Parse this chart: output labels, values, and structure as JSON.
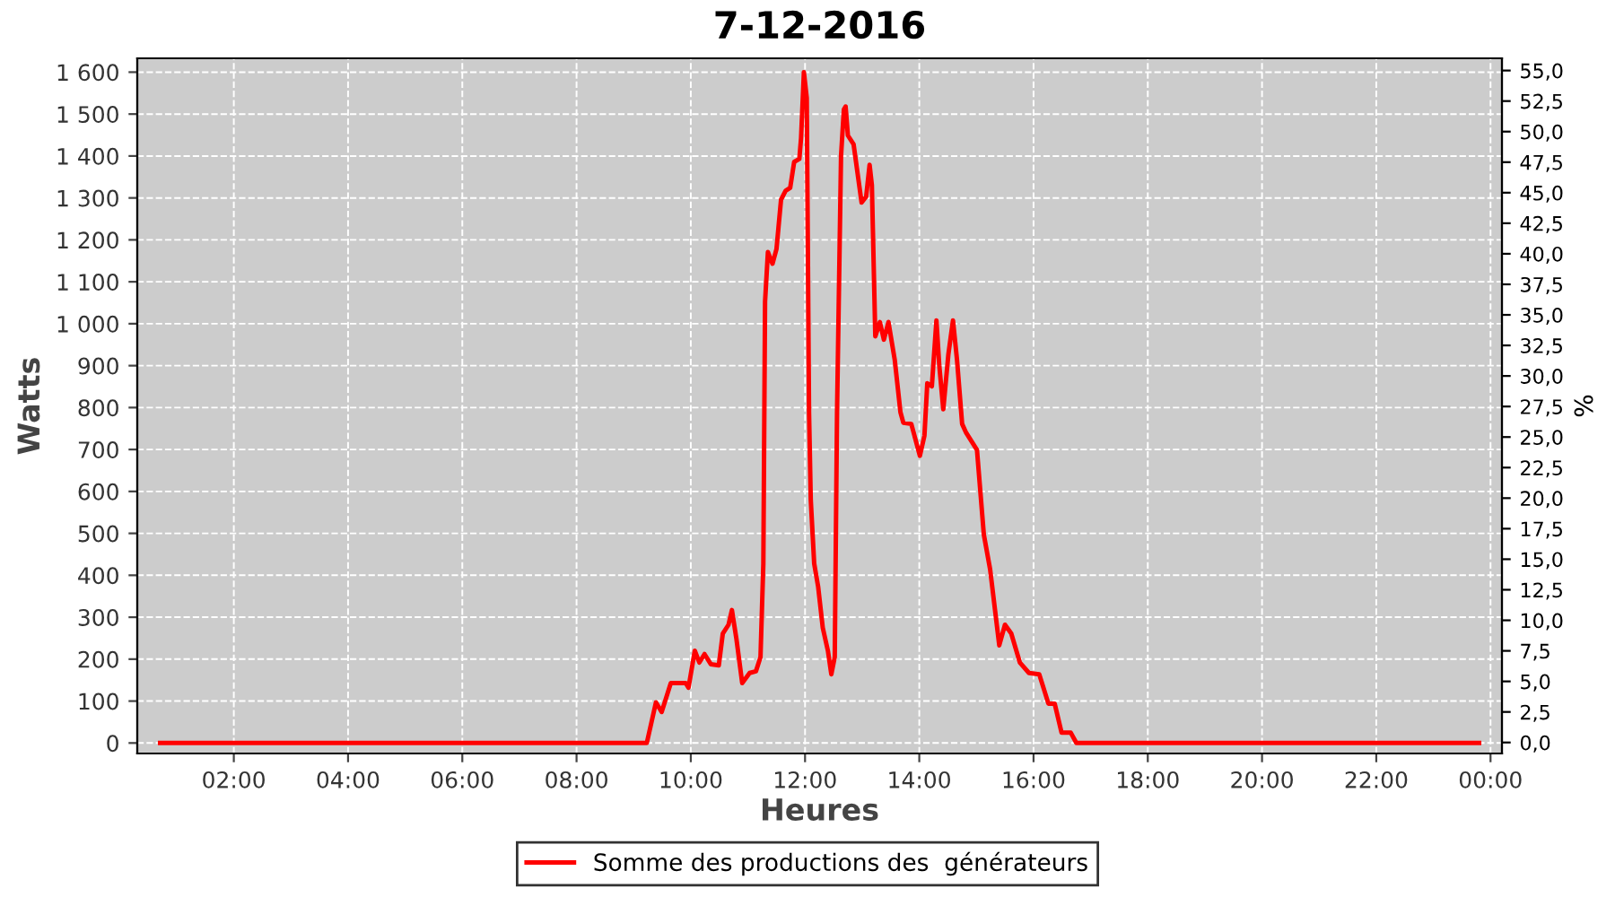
{
  "chart_data": {
    "type": "line",
    "title": "7-12-2016",
    "xlabel": "Heures",
    "ylabel": "Watts",
    "y2label": "%",
    "x": [
      0.71,
      9.23,
      9.39,
      9.49,
      9.65,
      9.91,
      9.96,
      10.07,
      10.15,
      10.24,
      10.35,
      10.49,
      10.56,
      10.66,
      10.72,
      10.8,
      10.9,
      11.03,
      11.14,
      11.22,
      11.27,
      11.3,
      11.35,
      11.43,
      11.5,
      11.58,
      11.66,
      11.74,
      11.81,
      11.9,
      11.93,
      11.98,
      12.03,
      12.07,
      12.1,
      12.16,
      12.23,
      12.31,
      12.4,
      12.46,
      12.52,
      12.56,
      12.63,
      12.68,
      12.71,
      12.75,
      12.85,
      12.99,
      13.07,
      13.13,
      13.17,
      13.23,
      13.31,
      13.38,
      13.46,
      13.57,
      13.67,
      13.72,
      13.86,
      14.01,
      14.09,
      14.14,
      14.22,
      14.3,
      14.35,
      14.42,
      14.51,
      14.59,
      14.66,
      14.75,
      14.82,
      15.01,
      15.13,
      15.24,
      15.4,
      15.5,
      15.61,
      15.76,
      15.92,
      16.1,
      16.26,
      16.37,
      16.49,
      16.65,
      16.75,
      23.8
    ],
    "series": [
      {
        "name": "Somme des productions des  générateurs",
        "color": "#ff0000",
        "values": [
          0,
          0,
          97,
          74,
          143,
          143,
          132,
          220,
          192,
          212,
          188,
          185,
          261,
          282,
          317,
          247,
          143,
          167,
          171,
          205,
          428,
          1053,
          1171,
          1143,
          1178,
          1296,
          1317,
          1324,
          1386,
          1393,
          1442,
          1600,
          1539,
          789,
          580,
          428,
          372,
          275,
          220,
          164,
          205,
          789,
          1400,
          1511,
          1518,
          1449,
          1428,
          1289,
          1303,
          1379,
          1330,
          970,
          1004,
          962,
          1004,
          914,
          789,
          764,
          761,
          685,
          733,
          858,
          851,
          1008,
          900,
          796,
          928,
          1008,
          914,
          761,
          740,
          699,
          497,
          414,
          233,
          282,
          261,
          192,
          167,
          164,
          94,
          94,
          25,
          25,
          0,
          0
        ]
      }
    ],
    "xlim": [
      0.31,
      24.2
    ],
    "xticks": [
      {
        "value": 2,
        "label": "02:00"
      },
      {
        "value": 4,
        "label": "04:00"
      },
      {
        "value": 6,
        "label": "06:00"
      },
      {
        "value": 8,
        "label": "08:00"
      },
      {
        "value": 10,
        "label": "10:00"
      },
      {
        "value": 12,
        "label": "12:00"
      },
      {
        "value": 14,
        "label": "14:00"
      },
      {
        "value": 16,
        "label": "16:00"
      },
      {
        "value": 18,
        "label": "18:00"
      },
      {
        "value": 20,
        "label": "20:00"
      },
      {
        "value": 22,
        "label": "22:00"
      },
      {
        "value": 24,
        "label": "00:00"
      }
    ],
    "ylim": [
      -25,
      1633
    ],
    "yticks": [
      0,
      100,
      200,
      300,
      400,
      500,
      600,
      700,
      800,
      900,
      {
        "value": 1000,
        "label": "1 000"
      },
      {
        "value": 1100,
        "label": "1 100"
      },
      {
        "value": 1200,
        "label": "1 200"
      },
      {
        "value": 1300,
        "label": "1 300"
      },
      {
        "value": 1400,
        "label": "1 400"
      },
      {
        "value": 1500,
        "label": "1 500"
      },
      {
        "value": 1600,
        "label": "1 600"
      }
    ],
    "y2lim": [
      -0.9,
      56.0
    ],
    "y2ticks": [
      {
        "value": 0,
        "label": "0,0"
      },
      {
        "value": 2.5,
        "label": "2,5"
      },
      {
        "value": 5,
        "label": "5,0"
      },
      {
        "value": 7.5,
        "label": "7,5"
      },
      {
        "value": 10,
        "label": "10,0"
      },
      {
        "value": 12.5,
        "label": "12,5"
      },
      {
        "value": 15,
        "label": "15,0"
      },
      {
        "value": 17.5,
        "label": "17,5"
      },
      {
        "value": 20,
        "label": "20,0"
      },
      {
        "value": 22.5,
        "label": "22,5"
      },
      {
        "value": 25,
        "label": "25,0"
      },
      {
        "value": 27.5,
        "label": "27,5"
      },
      {
        "value": 30,
        "label": "30,0"
      },
      {
        "value": 32.5,
        "label": "32,5"
      },
      {
        "value": 35,
        "label": "35,0"
      },
      {
        "value": 37.5,
        "label": "37,5"
      },
      {
        "value": 40,
        "label": "40,0"
      },
      {
        "value": 42.5,
        "label": "42,5"
      },
      {
        "value": 45,
        "label": "45,0"
      },
      {
        "value": 47.5,
        "label": "47,5"
      },
      {
        "value": 50,
        "label": "50,0"
      },
      {
        "value": 52.5,
        "label": "52,5"
      },
      {
        "value": 55,
        "label": "55,0"
      }
    ],
    "grid": true,
    "legend": "bottom",
    "line_style": "solid"
  }
}
